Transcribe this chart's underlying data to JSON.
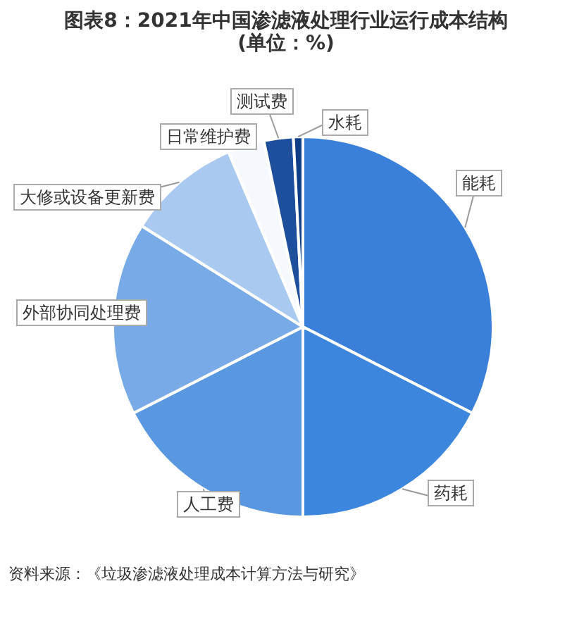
{
  "chart_data": {
    "type": "pie",
    "title": "图表8：2021年中国渗滤液处理行业运行成本结构 (单位：%)",
    "categories": [
      "能耗",
      "药耗",
      "人工费",
      "外部协同处理费",
      "大修或设备更新费",
      "日常维护费",
      "测试费",
      "水耗"
    ],
    "values": [
      32.5,
      17.5,
      17.5,
      16.4,
      9.7,
      3.1,
      2.5,
      0.8
    ],
    "colors": [
      "#3a80da",
      "#3d86dd",
      "#5a97e1",
      "#78aae7",
      "#aac9f0",
      "#f5f8fc",
      "#1e4f9c",
      "#0f3e86"
    ],
    "annotations": [
      "资料来源：《垃圾渗滤液处理成本计算方法与研究》"
    ]
  }
}
